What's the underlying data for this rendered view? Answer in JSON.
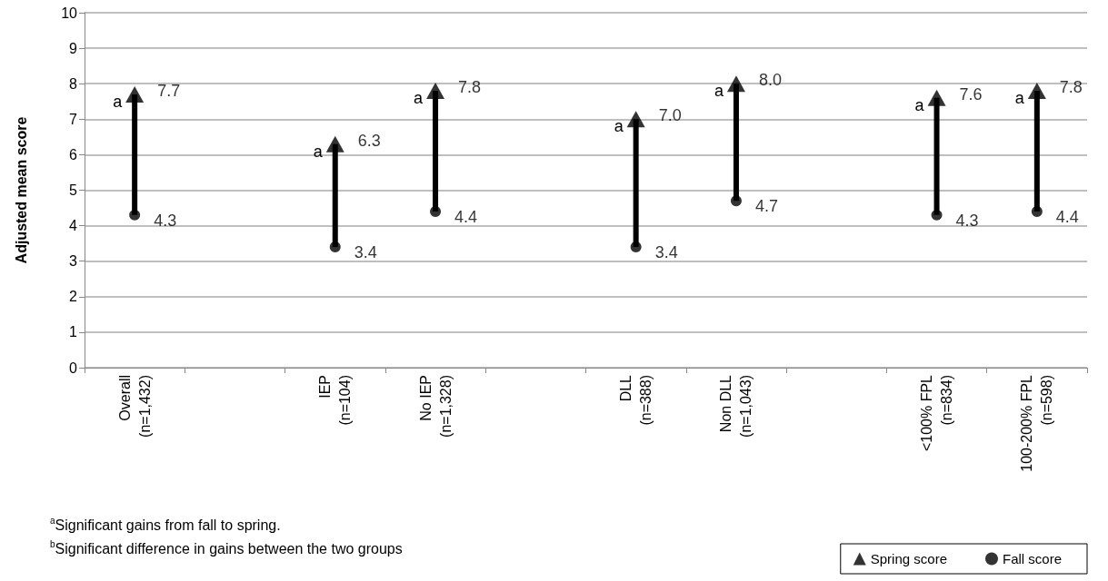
{
  "chart_data": {
    "type": "scatter",
    "ylabel": "Adjusted mean score",
    "categories": [
      "Overall\n(n=1,432)",
      null,
      "IEP\n(n=104)",
      "No IEP\n(n=1,328)",
      null,
      "DLL\n(n=388)",
      "Non DLL\n(n=1,043)",
      null,
      "<100% FPL\n(n=834)",
      "100-200% FPL\n(n=598)"
    ],
    "series": [
      {
        "name": "Spring score",
        "color": "#000000",
        "marker": "triangle",
        "values": [
          7.7,
          null,
          6.3,
          7.8,
          null,
          7.0,
          8.0,
          null,
          7.6,
          7.8
        ],
        "value_labels": [
          "7.7",
          null,
          "6.3",
          "7.8",
          null,
          "7.0",
          "8.0",
          null,
          "7.6",
          "7.8"
        ]
      },
      {
        "name": "Fall score",
        "color": "#000000",
        "marker": "circle",
        "values": [
          4.3,
          null,
          3.4,
          4.4,
          null,
          3.4,
          4.7,
          null,
          4.3,
          4.4
        ],
        "value_labels": [
          "4.3",
          null,
          "3.4",
          "4.4",
          null,
          "3.4",
          "4.7",
          null,
          "4.3",
          "4.4"
        ]
      }
    ],
    "ylim": [
      0,
      10
    ],
    "yticks": [
      0,
      1,
      2,
      3,
      4,
      5,
      6,
      7,
      8,
      9,
      10
    ],
    "grid": "y",
    "legend": "bottom right",
    "annotations": [
      {
        "text": "a",
        "x": "Overall\n(n=1,432)",
        "y": 7.7
      },
      {
        "text": "a",
        "x": "IEP\n(n=104)",
        "y": 6.3
      },
      {
        "text": "a",
        "x": "No IEP\n(n=1,328)",
        "y": 7.8
      },
      {
        "text": "a",
        "x": "DLL\n(n=388)",
        "y": 7.0
      },
      {
        "text": "a",
        "x": "Non DLL\n(n=1,043)",
        "y": 8.0
      },
      {
        "text": "a",
        "x": "<100% FPL\n(n=834)",
        "y": 7.6
      },
      {
        "text": "a",
        "x": "100-200% FPL\n(n=598)",
        "y": 7.8
      },
      "$^{a}$Significant gains from fall to spring.",
      "$^{b}$Significant difference in gains between the two groups"
    ]
  }
}
